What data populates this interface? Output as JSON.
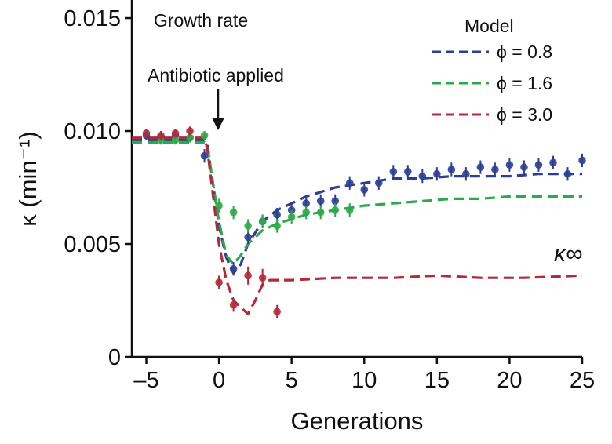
{
  "chart_data": {
    "type": "scatter",
    "title": "Growth rate",
    "xlabel": "Generations",
    "ylabel": "κ (min⁻¹)",
    "xlim": [
      -6,
      25
    ],
    "ylim": [
      0,
      0.0158
    ],
    "x_ticks": [
      -5,
      0,
      5,
      10,
      15,
      20,
      25
    ],
    "x_tick_labels": [
      "–5",
      "0",
      "5",
      "10",
      "15",
      "20",
      "25"
    ],
    "y_ticks": [
      0,
      0.005,
      0.01,
      0.015
    ],
    "y_tick_labels": [
      "0",
      "0.005",
      "0.010",
      "0.015"
    ],
    "annotations": {
      "antibiotic": {
        "text": "Antibiotic applied",
        "x": 0
      },
      "asymptote": "κ∞"
    },
    "legend": {
      "title": "Model",
      "position": "top-right",
      "entries": [
        "ϕ = 0.8",
        "ϕ = 1.6",
        "ϕ = 3.0"
      ]
    },
    "colors": {
      "blue": "#2b3f93",
      "green": "#2ea84a",
      "red": "#b5293a",
      "text": "#111111"
    },
    "series": [
      {
        "name": "ϕ = 0.8",
        "color": "#2b3f93",
        "model": [
          [
            -6,
            0.0096
          ],
          [
            -5,
            0.0096
          ],
          [
            -4,
            0.0096
          ],
          [
            -3,
            0.0096
          ],
          [
            -2,
            0.0096
          ],
          [
            -1,
            0.0096
          ],
          [
            -0.8,
            0.0094
          ],
          [
            0,
            0.0058
          ],
          [
            0.5,
            0.0044
          ],
          [
            1,
            0.0037
          ],
          [
            1.5,
            0.0041
          ],
          [
            2,
            0.005
          ],
          [
            3,
            0.006
          ],
          [
            4,
            0.0065
          ],
          [
            5,
            0.0068
          ],
          [
            6,
            0.0071
          ],
          [
            7,
            0.0073
          ],
          [
            8,
            0.0075
          ],
          [
            9,
            0.0076
          ],
          [
            10,
            0.0077
          ],
          [
            11,
            0.0078
          ],
          [
            12,
            0.0079
          ],
          [
            14,
            0.0079
          ],
          [
            16,
            0.008
          ],
          [
            18,
            0.008
          ],
          [
            20,
            0.008
          ],
          [
            22,
            0.0081
          ],
          [
            25,
            0.0081
          ]
        ],
        "points": [
          {
            "x": -5,
            "y": 0.0098,
            "err": 0.0002
          },
          {
            "x": -4,
            "y": 0.0097,
            "err": 0.0002
          },
          {
            "x": -3,
            "y": 0.0098,
            "err": 0.0002
          },
          {
            "x": -2,
            "y": 0.0097,
            "err": 0.0002
          },
          {
            "x": -1,
            "y": 0.0089,
            "err": 0.0003
          },
          {
            "x": 1,
            "y": 0.0039,
            "err": 0.0003
          },
          {
            "x": 2,
            "y": 0.0053,
            "err": 0.0003
          },
          {
            "x": 3,
            "y": 0.006,
            "err": 0.0003
          },
          {
            "x": 4,
            "y": 0.0063,
            "err": 0.0003
          },
          {
            "x": 5,
            "y": 0.0065,
            "err": 0.0003
          },
          {
            "x": 6,
            "y": 0.0068,
            "err": 0.0003
          },
          {
            "x": 7,
            "y": 0.0069,
            "err": 0.0003
          },
          {
            "x": 8,
            "y": 0.0069,
            "err": 0.0003
          },
          {
            "x": 9,
            "y": 0.0077,
            "err": 0.0003
          },
          {
            "x": 10,
            "y": 0.0074,
            "err": 0.0003
          },
          {
            "x": 11,
            "y": 0.0077,
            "err": 0.0003
          },
          {
            "x": 12,
            "y": 0.0082,
            "err": 0.0003
          },
          {
            "x": 13,
            "y": 0.0082,
            "err": 0.0003
          },
          {
            "x": 14,
            "y": 0.008,
            "err": 0.0003
          },
          {
            "x": 15,
            "y": 0.0081,
            "err": 0.0003
          },
          {
            "x": 16,
            "y": 0.0083,
            "err": 0.0003
          },
          {
            "x": 17,
            "y": 0.0081,
            "err": 0.0003
          },
          {
            "x": 18,
            "y": 0.0084,
            "err": 0.0003
          },
          {
            "x": 19,
            "y": 0.0083,
            "err": 0.0003
          },
          {
            "x": 20,
            "y": 0.0085,
            "err": 0.0003
          },
          {
            "x": 21,
            "y": 0.0084,
            "err": 0.0003
          },
          {
            "x": 22,
            "y": 0.0085,
            "err": 0.0003
          },
          {
            "x": 23,
            "y": 0.0086,
            "err": 0.0003
          },
          {
            "x": 24,
            "y": 0.0081,
            "err": 0.0003
          },
          {
            "x": 25,
            "y": 0.0087,
            "err": 0.0003
          }
        ]
      },
      {
        "name": "ϕ = 1.6",
        "color": "#2ea84a",
        "model": [
          [
            -6,
            0.0095
          ],
          [
            -5,
            0.0095
          ],
          [
            -4,
            0.0095
          ],
          [
            -3,
            0.0095
          ],
          [
            -2,
            0.0095
          ],
          [
            -1,
            0.0095
          ],
          [
            -0.8,
            0.0093
          ],
          [
            0,
            0.006
          ],
          [
            0.5,
            0.0045
          ],
          [
            1,
            0.0041
          ],
          [
            1.5,
            0.0045
          ],
          [
            2,
            0.005
          ],
          [
            3,
            0.0056
          ],
          [
            4,
            0.0059
          ],
          [
            5,
            0.0061
          ],
          [
            6,
            0.0063
          ],
          [
            7,
            0.0064
          ],
          [
            8,
            0.0065
          ],
          [
            9,
            0.0066
          ],
          [
            10,
            0.0067
          ],
          [
            12,
            0.0068
          ],
          [
            14,
            0.0069
          ],
          [
            16,
            0.007
          ],
          [
            18,
            0.007
          ],
          [
            20,
            0.0071
          ],
          [
            22,
            0.0071
          ],
          [
            25,
            0.0071
          ]
        ],
        "points": [
          {
            "x": -4,
            "y": 0.0096,
            "err": 0.0002
          },
          {
            "x": -3,
            "y": 0.0096,
            "err": 0.0002
          },
          {
            "x": -2,
            "y": 0.0097,
            "err": 0.0002
          },
          {
            "x": -1,
            "y": 0.0098,
            "err": 0.0002
          },
          {
            "x": 0,
            "y": 0.0067,
            "err": 0.0003
          },
          {
            "x": 1,
            "y": 0.0064,
            "err": 0.0003
          },
          {
            "x": 2,
            "y": 0.0058,
            "err": 0.0003
          },
          {
            "x": 3,
            "y": 0.006,
            "err": 0.0003
          },
          {
            "x": 4,
            "y": 0.0058,
            "err": 0.0003
          },
          {
            "x": 5,
            "y": 0.0062,
            "err": 0.0003
          },
          {
            "x": 6,
            "y": 0.0064,
            "err": 0.0003
          },
          {
            "x": 7,
            "y": 0.0064,
            "err": 0.0003
          },
          {
            "x": 8,
            "y": 0.0065,
            "err": 0.0003
          },
          {
            "x": 9,
            "y": 0.0065,
            "err": 0.0003
          }
        ]
      },
      {
        "name": "ϕ = 3.0",
        "color": "#b5293a",
        "model": [
          [
            -6,
            0.0097
          ],
          [
            -5,
            0.0097
          ],
          [
            -4,
            0.0097
          ],
          [
            -3,
            0.0097
          ],
          [
            -2,
            0.0097
          ],
          [
            -1,
            0.0097
          ],
          [
            -0.8,
            0.0092
          ],
          [
            0,
            0.005
          ],
          [
            0.5,
            0.0034
          ],
          [
            1,
            0.0025
          ],
          [
            2,
            0.0019
          ],
          [
            2.5,
            0.0025
          ],
          [
            3,
            0.0032
          ],
          [
            3.5,
            0.0034
          ],
          [
            5,
            0.0034
          ],
          [
            8,
            0.0035
          ],
          [
            12,
            0.0035
          ],
          [
            15,
            0.0036
          ],
          [
            18,
            0.0035
          ],
          [
            21,
            0.0035
          ],
          [
            25,
            0.0036
          ]
        ],
        "points": [
          {
            "x": -5,
            "y": 0.0099,
            "err": 0.0002
          },
          {
            "x": -4,
            "y": 0.0098,
            "err": 0.0002
          },
          {
            "x": -3,
            "y": 0.0099,
            "err": 0.0002
          },
          {
            "x": -2,
            "y": 0.01,
            "err": 0.0002
          },
          {
            "x": 0,
            "y": 0.0033,
            "err": 0.0003
          },
          {
            "x": 1,
            "y": 0.0023,
            "err": 0.0003
          },
          {
            "x": 2,
            "y": 0.0036,
            "err": 0.0004
          },
          {
            "x": 3,
            "y": 0.0035,
            "err": 0.0004
          },
          {
            "x": 4,
            "y": 0.002,
            "err": 0.0003
          }
        ]
      }
    ]
  }
}
